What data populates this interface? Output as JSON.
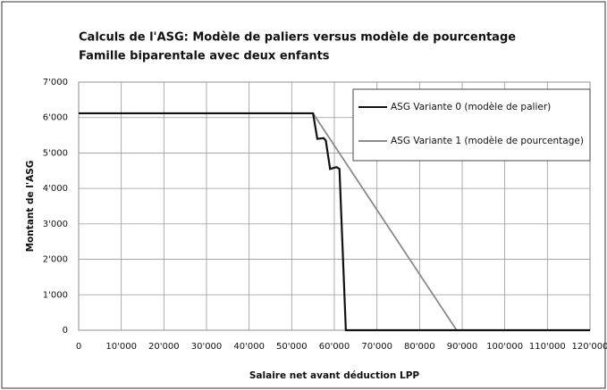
{
  "chart_data": {
    "type": "line",
    "title": "Calculs de l'ASG: Modèle de paliers versus modèle de pourcentage",
    "subtitle": "Famille biparentale avec deux enfants",
    "xlabel": "Salaire net avant déduction LPP",
    "ylabel": "Montant de l'ASG",
    "xlim": [
      0,
      120000
    ],
    "xticks": [
      0,
      {
        "value": 10000,
        "label": "10'000"
      },
      {
        "value": 20000,
        "label": "20'000"
      },
      {
        "value": 30000,
        "label": "30'000"
      },
      {
        "value": 40000,
        "label": "40'000"
      },
      {
        "value": 50000,
        "label": "50'000"
      },
      {
        "value": 60000,
        "label": "60'000"
      },
      {
        "value": 70000,
        "label": "70'000"
      },
      {
        "value": 80000,
        "label": "80'000"
      },
      {
        "value": 90000,
        "label": "90'000"
      },
      {
        "value": 100000,
        "label": "100'000"
      },
      {
        "value": 110000,
        "label": "110'000"
      },
      {
        "value": 120000,
        "label": "120'000"
      }
    ],
    "ylim": [
      0,
      7000
    ],
    "yticks": [
      0,
      {
        "value": 1000,
        "label": "1'000"
      },
      {
        "value": 2000,
        "label": "2'000"
      },
      {
        "value": 3000,
        "label": "3'000"
      },
      {
        "value": 4000,
        "label": "4'000"
      },
      {
        "value": 5000,
        "label": "5'000"
      },
      {
        "value": 6000,
        "label": "6'000"
      },
      {
        "value": 7000,
        "label": "7'000"
      }
    ],
    "grid": true,
    "legend": "upper right",
    "series": [
      {
        "name": "ASG Variante 0 (modèle de palier)",
        "color": "#111111",
        "x": [
          0,
          55000,
          56000,
          57500,
          58000,
          59000,
          60500,
          61200,
          62700,
          120000
        ],
        "values": [
          6120,
          6120,
          5400,
          5420,
          5350,
          4550,
          4600,
          4550,
          0,
          0
        ]
      },
      {
        "name": "ASG Variante 1 (modèle de pourcentage)",
        "color": "#8a8a8a",
        "x": [
          0,
          55000,
          88700,
          120000
        ],
        "values": [
          6120,
          6120,
          0,
          0
        ]
      }
    ]
  }
}
